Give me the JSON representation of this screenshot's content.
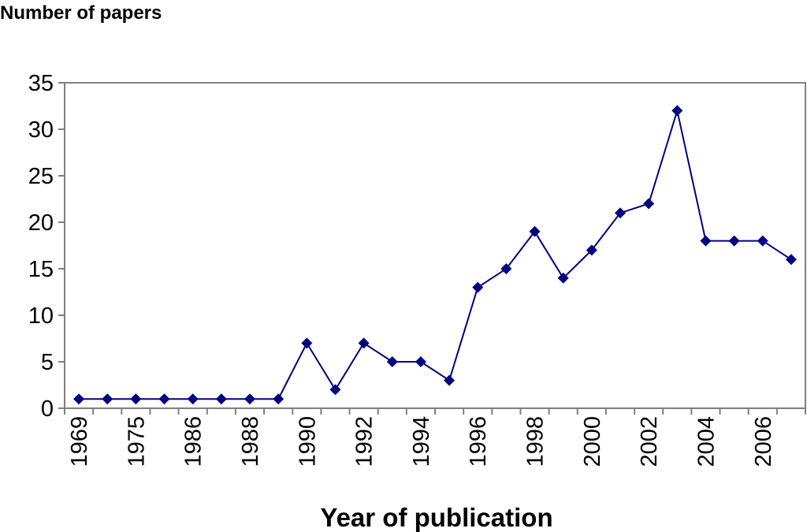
{
  "chart_data": {
    "type": "line",
    "title": "",
    "ylabel": "Number of papers",
    "xlabel": "Year of publication",
    "ylim": [
      0,
      35
    ],
    "yticks": [
      "0",
      "5",
      "10",
      "15",
      "20",
      "25",
      "30",
      "35"
    ],
    "categories": [
      "1969",
      "",
      "1975",
      "",
      "1986",
      "",
      "1988",
      "",
      "1990",
      "",
      "1992",
      "",
      "1994",
      "",
      "1996",
      "",
      "1998",
      "",
      "2000",
      "",
      "2002",
      "",
      "2004",
      "",
      "2006",
      ""
    ],
    "series": [
      {
        "values": [
          1,
          1,
          1,
          1,
          1,
          1,
          1,
          1,
          7,
          2,
          7,
          5,
          5,
          3,
          13,
          15,
          19,
          14,
          17,
          21,
          22,
          32,
          18,
          18,
          18,
          16
        ],
        "color": "#000080",
        "marker": "diamond"
      }
    ],
    "grid": false,
    "legend": "none",
    "plot_border_color": "#808080"
  }
}
